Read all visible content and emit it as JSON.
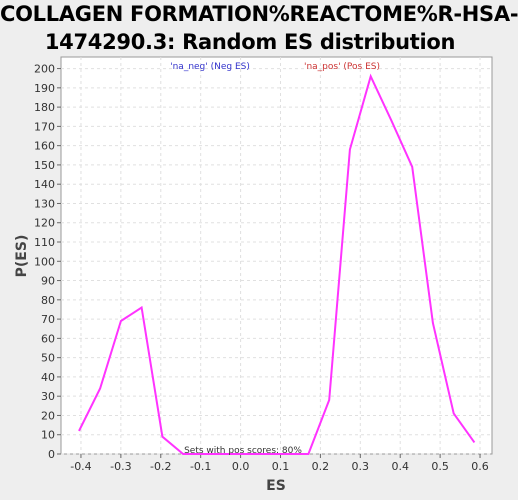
{
  "title_lines": [
    "COLLAGEN FORMATION%REACTOME%R-HSA-",
    "1474290.3: Random ES distribution"
  ],
  "chart_data": {
    "type": "line",
    "title": "COLLAGEN FORMATION%REACTOME%R-HSA-1474290.3: Random ES distribution",
    "xlabel": "ES",
    "ylabel": "P(ES)",
    "xlim": [
      -0.45,
      0.63
    ],
    "ylim": [
      0,
      206
    ],
    "xticks": [
      -0.4,
      -0.3,
      -0.2,
      -0.1,
      0.0,
      0.1,
      0.2,
      0.3,
      0.4,
      0.5,
      0.6
    ],
    "xtick_labels": [
      "-0.4",
      "-0.3",
      "-0.2",
      "-0.1",
      "0.0",
      "0.1",
      "0.2",
      "0.3",
      "0.4",
      "0.5",
      "0.6"
    ],
    "yticks": [
      0,
      10,
      20,
      30,
      40,
      50,
      60,
      70,
      80,
      90,
      100,
      110,
      120,
      130,
      140,
      150,
      160,
      170,
      180,
      190,
      200
    ],
    "ytick_labels": [
      "0",
      "10",
      "20",
      "30",
      "40",
      "50",
      "60",
      "70",
      "80",
      "90",
      "100",
      "110",
      "120",
      "130",
      "140",
      "150",
      "160",
      "170",
      "180",
      "190",
      "200"
    ],
    "grid": true,
    "series": [
      {
        "name": "",
        "color": "#ff33ff",
        "x": [
          -0.405,
          -0.352,
          -0.3,
          -0.248,
          -0.196,
          -0.144,
          0.17,
          0.222,
          0.274,
          0.326,
          0.378,
          0.43,
          0.482,
          0.534,
          0.586
        ],
        "y": [
          12,
          34,
          69,
          76,
          9,
          0,
          0,
          28,
          158,
          196,
          173,
          149,
          68,
          21,
          6
        ]
      }
    ],
    "legend": [
      {
        "label": "'na_neg' (Neg ES)",
        "color": "#3333cc"
      },
      {
        "label": "'na_pos' (Pos ES)",
        "color": "#cc3333"
      }
    ],
    "annotation": "Sets with pos scores: 80%"
  }
}
